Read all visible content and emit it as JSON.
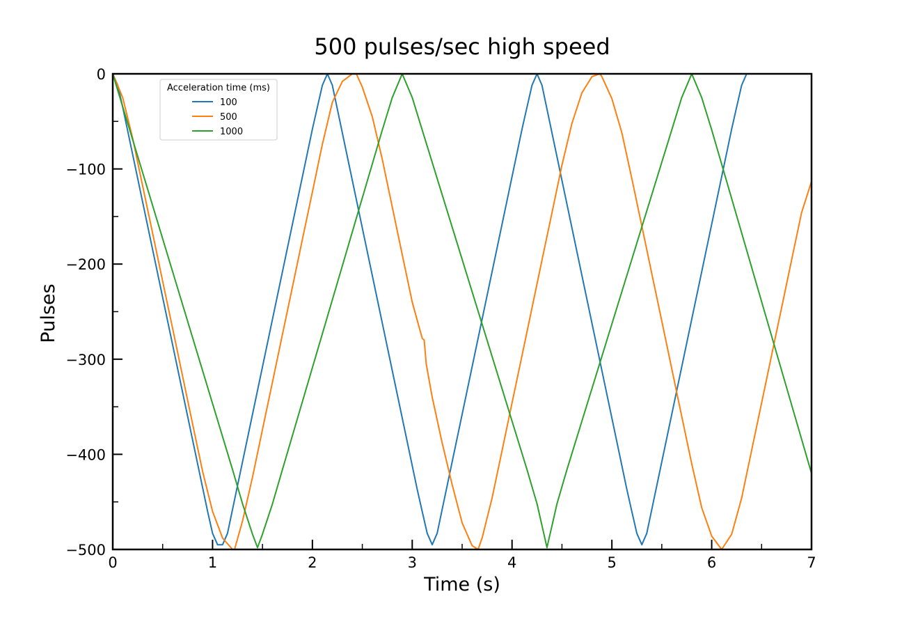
{
  "chart_data": {
    "type": "line",
    "title": "500 pulses/sec high speed",
    "xlabel": "Time (s)",
    "ylabel": "Pulses",
    "xlim": [
      0,
      7
    ],
    "ylim": [
      -500,
      0
    ],
    "xticks": [
      0,
      1,
      2,
      3,
      4,
      5,
      6,
      7
    ],
    "xtick_labels": [
      "0",
      "1",
      "2",
      "3",
      "4",
      "5",
      "6",
      "7"
    ],
    "xminor": [
      0.5,
      1.5,
      2.5,
      3.5,
      4.5,
      5.5,
      6.5
    ],
    "yticks": [
      0,
      -100,
      -200,
      -300,
      -400,
      -500
    ],
    "ytick_labels": [
      "0",
      "−100",
      "−200",
      "−300",
      "−400",
      "−500"
    ],
    "yminor": [
      -50,
      -150,
      -250,
      -350,
      -450
    ],
    "grid": false,
    "legend": {
      "title": "Acceleration time (ms)",
      "placement": "top-left"
    },
    "series": [
      {
        "name": "100",
        "color": "#1f77b4",
        "x": [
          0,
          0.05,
          0.1,
          0.95,
          1.0,
          1.05,
          1.1,
          1.15,
          2.0,
          2.05,
          2.1,
          2.15,
          2.2,
          3.05,
          3.1,
          3.15,
          3.2,
          3.25,
          4.1,
          4.15,
          4.2,
          4.25,
          4.3,
          5.15,
          5.2,
          5.25,
          5.3,
          5.35,
          6.2,
          6.25,
          6.3,
          6.35
        ],
        "y": [
          0,
          -12,
          -35,
          -460,
          -483,
          -495,
          -495,
          -483,
          -58,
          -35,
          -12,
          0,
          -12,
          -437,
          -460,
          -483,
          -495,
          -483,
          -58,
          -35,
          -12,
          0,
          -12,
          -437,
          -460,
          -483,
          -495,
          -483,
          -58,
          -35,
          -12,
          0
        ]
      },
      {
        "name": "500",
        "color": "#ff7f0e",
        "x": [
          0,
          0.1,
          0.2,
          0.3,
          0.4,
          0.5,
          0.6,
          0.7,
          0.8,
          0.9,
          1.0,
          1.1,
          1.2,
          1.22,
          1.3,
          1.4,
          1.5,
          1.6,
          1.7,
          1.8,
          1.9,
          2.0,
          2.1,
          2.2,
          2.3,
          2.4,
          2.44,
          2.5,
          2.6,
          2.7,
          2.8,
          2.9,
          3.0,
          3.1,
          3.12,
          3.14,
          3.2,
          3.3,
          3.4,
          3.5,
          3.6,
          3.66,
          3.7,
          3.8,
          3.9,
          4.0,
          4.1,
          4.2,
          4.3,
          4.4,
          4.5,
          4.6,
          4.7,
          4.8,
          4.88,
          4.9,
          5.0,
          5.1,
          5.2,
          5.3,
          5.4,
          5.5,
          5.6,
          5.7,
          5.8,
          5.9,
          6.0,
          6.1,
          6.2,
          6.3,
          6.4,
          6.5,
          6.6,
          6.7,
          6.8,
          6.9,
          7.0
        ],
        "y": [
          0,
          -25,
          -68,
          -118,
          -168,
          -218,
          -268,
          -318,
          -368,
          -418,
          -460,
          -488,
          -500,
          -500,
          -470,
          -424,
          -374,
          -324,
          -274,
          -224,
          -174,
          -124,
          -74,
          -30,
          -8,
          0,
          0,
          -14,
          -45,
          -90,
          -140,
          -190,
          -240,
          -278,
          -280,
          -305,
          -340,
          -388,
          -432,
          -472,
          -496,
          -500,
          -488,
          -446,
          -396,
          -346,
          -296,
          -246,
          -196,
          -146,
          -96,
          -52,
          -20,
          -3,
          0,
          -3,
          -26,
          -62,
          -110,
          -160,
          -210,
          -260,
          -310,
          -360,
          -410,
          -456,
          -486,
          -500,
          -484,
          -446,
          -396,
          -346,
          -296,
          -246,
          -196,
          -146,
          -113
        ]
      },
      {
        "name": "1000",
        "color": "#2ca02c",
        "x": [
          0,
          1.2,
          1.3,
          1.4,
          1.45,
          1.5,
          1.6,
          1.7,
          2.7,
          2.8,
          2.9,
          3.0,
          3.1,
          4.15,
          4.25,
          4.35,
          4.45,
          4.55,
          5.6,
          5.7,
          5.8,
          5.9,
          6.0,
          7.0
        ],
        "y": [
          0,
          -416,
          -452,
          -484,
          -498,
          -484,
          -452,
          -416,
          -59,
          -25,
          0,
          -25,
          -59,
          -416,
          -452,
          -498,
          -452,
          -416,
          -59,
          -25,
          0,
          -25,
          -59,
          -420
        ]
      }
    ]
  }
}
